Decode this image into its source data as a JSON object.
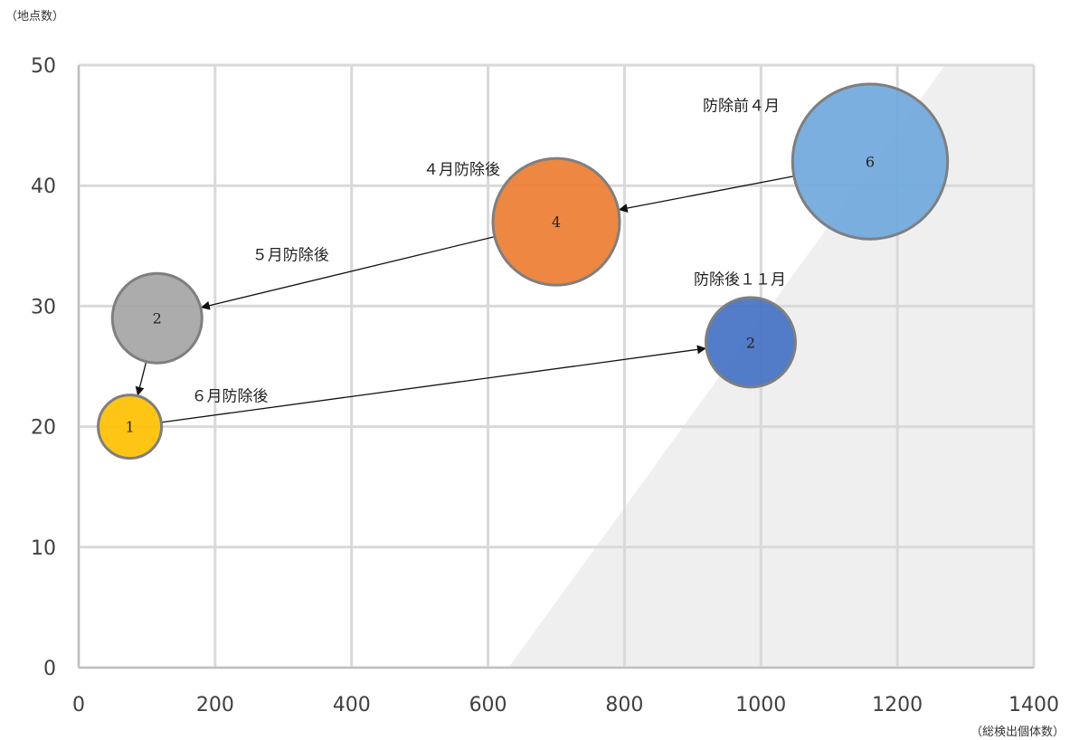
{
  "chart_data": {
    "type": "bubble",
    "y_unit_label": "（地点数）",
    "x_unit_label": "（総検出個体数）",
    "xlim": [
      0,
      1400
    ],
    "ylim": [
      0,
      50
    ],
    "x_ticks": [
      0,
      200,
      400,
      600,
      800,
      1000,
      1200,
      1400
    ],
    "y_ticks": [
      0,
      10,
      20,
      30,
      40,
      50
    ],
    "grid": true,
    "points": [
      {
        "label": "防除前４月",
        "x": 1160,
        "y": 42,
        "size": 6,
        "color": "#6fa8dc"
      },
      {
        "label": "４月防除後",
        "x": 700,
        "y": 37,
        "size": 4,
        "color": "#ed7d31"
      },
      {
        "label": "５月防除後",
        "x": 115,
        "y": 29,
        "size": 2,
        "color": "#a5a5a5"
      },
      {
        "label": "６月防除後",
        "x": 75,
        "y": 20,
        "size": 1,
        "color": "#ffc000"
      },
      {
        "label": "防除後１１月",
        "x": 985,
        "y": 27,
        "size": 2,
        "color": "#4472c4"
      }
    ],
    "arrows": [
      {
        "from": "防除前４月",
        "to": "４月防除後"
      },
      {
        "from": "４月防除後",
        "to": "５月防除後"
      },
      {
        "from": "５月防除後",
        "to": "６月防除後"
      },
      {
        "from": "６月防除後",
        "to": "防除後１１月"
      }
    ],
    "shaded_region": {
      "x_start_at_y0": 630,
      "x_end_at_y50": 1270,
      "color": "#efefef"
    }
  }
}
